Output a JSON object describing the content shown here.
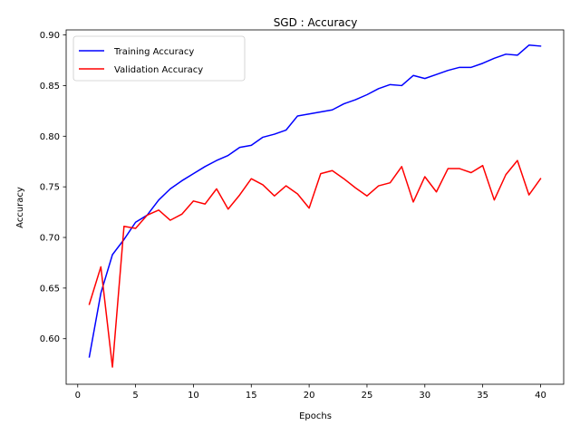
{
  "chart_data": {
    "type": "line",
    "title": "SGD : Accuracy",
    "xlabel": "Epochs",
    "ylabel": "Accuracy",
    "xlim": [
      -1.0,
      42.0
    ],
    "ylim": [
      0.555,
      0.905
    ],
    "xticks": [
      0,
      5,
      10,
      15,
      20,
      25,
      30,
      35,
      40
    ],
    "xtick_labels": [
      "0",
      "5",
      "10",
      "15",
      "20",
      "25",
      "30",
      "35",
      "40"
    ],
    "yticks": [
      0.6,
      0.65,
      0.7,
      0.75,
      0.8,
      0.85,
      0.9
    ],
    "ytick_labels": [
      "0.60",
      "0.65",
      "0.70",
      "0.75",
      "0.80",
      "0.85",
      "0.90"
    ],
    "grid": false,
    "legend_position": "top-left",
    "x": [
      1,
      2,
      3,
      4,
      5,
      6,
      7,
      8,
      9,
      10,
      11,
      12,
      13,
      14,
      15,
      16,
      17,
      18,
      19,
      20,
      21,
      22,
      23,
      24,
      25,
      26,
      27,
      28,
      29,
      30,
      31,
      32,
      33,
      34,
      35,
      36,
      37,
      38,
      39,
      40
    ],
    "series": [
      {
        "name": "Training Accuracy",
        "color": "#0000ff",
        "values": [
          0.582,
          0.645,
          0.683,
          0.698,
          0.715,
          0.722,
          0.737,
          0.748,
          0.756,
          0.763,
          0.77,
          0.776,
          0.781,
          0.789,
          0.791,
          0.799,
          0.802,
          0.806,
          0.82,
          0.822,
          0.824,
          0.826,
          0.832,
          0.836,
          0.841,
          0.847,
          0.851,
          0.85,
          0.86,
          0.857,
          0.861,
          0.865,
          0.868,
          0.868,
          0.872,
          0.877,
          0.881,
          0.88,
          0.89,
          0.889
        ]
      },
      {
        "name": "Validation Accuracy",
        "color": "#ff0000",
        "values": [
          0.634,
          0.671,
          0.572,
          0.711,
          0.709,
          0.722,
          0.727,
          0.717,
          0.723,
          0.736,
          0.733,
          0.748,
          0.728,
          0.742,
          0.758,
          0.752,
          0.741,
          0.751,
          0.743,
          0.729,
          0.763,
          0.766,
          0.758,
          0.749,
          0.741,
          0.751,
          0.754,
          0.77,
          0.735,
          0.76,
          0.745,
          0.768,
          0.768,
          0.764,
          0.771,
          0.737,
          0.762,
          0.776,
          0.742,
          0.758
        ]
      }
    ]
  }
}
